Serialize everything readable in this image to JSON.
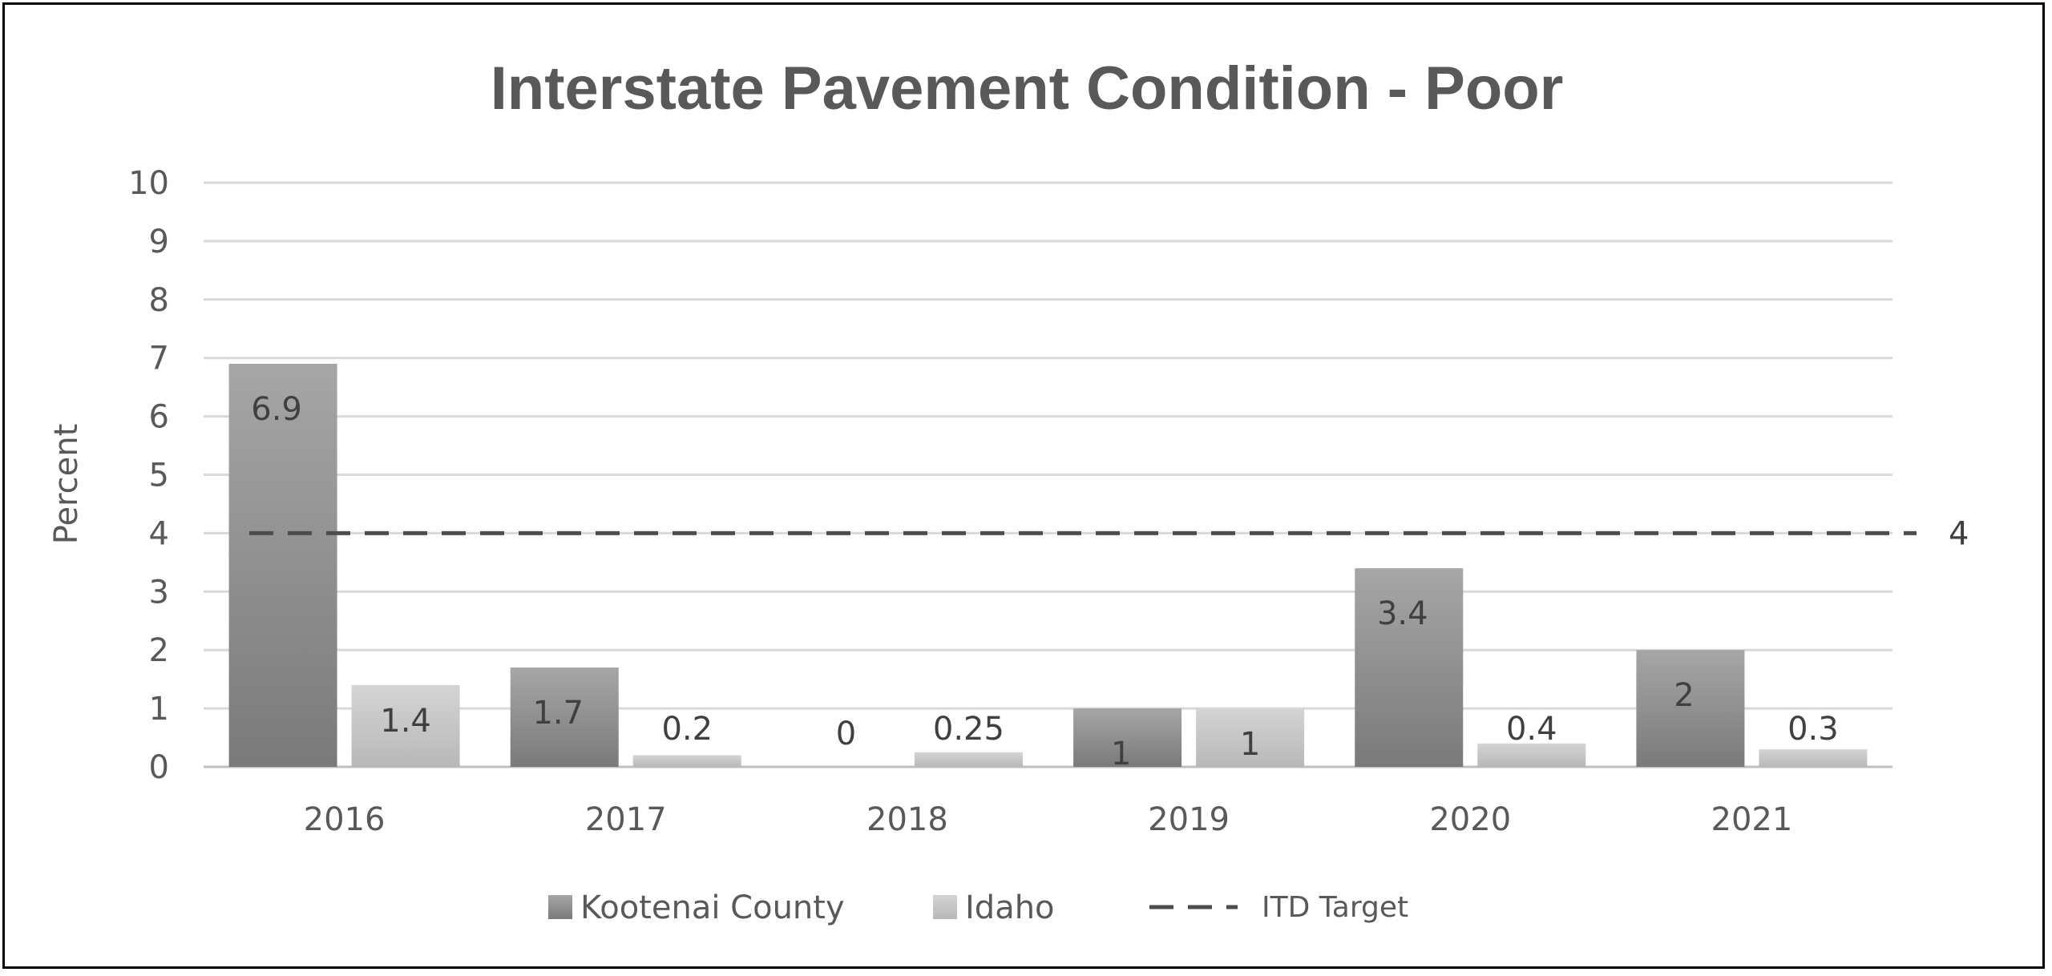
{
  "chart_data": {
    "type": "bar",
    "title": "Interstate Pavement Condition - Poor",
    "ylabel": "Percent",
    "xlabel": "",
    "categories": [
      "2016",
      "2017",
      "2018",
      "2019",
      "2020",
      "2021"
    ],
    "series": [
      {
        "name": "Kootenai County",
        "values": [
          6.9,
          1.7,
          0,
          1,
          3.4,
          2
        ],
        "labels": [
          "6.9",
          "1.7",
          "0",
          "1",
          "3.4",
          "2"
        ],
        "color": "#8c8c8c"
      },
      {
        "name": "Idaho",
        "values": [
          1.4,
          0.2,
          0.25,
          1,
          0.4,
          0.3
        ],
        "labels": [
          "1.4",
          "0.2",
          "0.25",
          "1",
          "0.4",
          "0.3"
        ],
        "color": "#c8c8c8"
      }
    ],
    "target_line": {
      "name": "ITD Target",
      "value": 4,
      "label": "4",
      "style": "dashed",
      "color": "#4d4d4d"
    },
    "ylim": [
      0,
      10
    ],
    "yticks": [
      "0",
      "1",
      "2",
      "3",
      "4",
      "5",
      "6",
      "7",
      "8",
      "9",
      "10"
    ],
    "grid": true,
    "legend_position": "bottom"
  }
}
